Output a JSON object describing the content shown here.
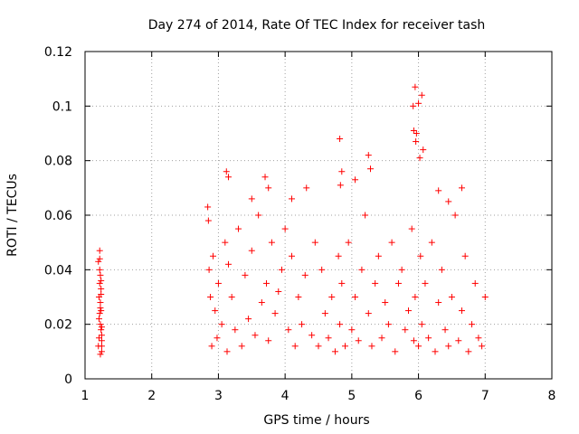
{
  "chart_data": {
    "type": "scatter",
    "title": "Day 274 of 2014, Rate Of TEC Index for receiver tash",
    "xlabel": "GPS time / hours",
    "ylabel": "ROTI / TECUs",
    "xlim": [
      1,
      8
    ],
    "ylim": [
      0,
      0.12
    ],
    "xticks": [
      "1",
      "2",
      "3",
      "4",
      "5",
      "6",
      "7",
      "8"
    ],
    "yticks": [
      "0",
      "0.02",
      "0.04",
      "0.06",
      "0.08",
      "0.1",
      "0.12"
    ],
    "grid": true,
    "marker": "+",
    "color": "#ff0000",
    "series": [
      {
        "name": "ROTI",
        "x": [
          1.2,
          1.21,
          1.22,
          1.22,
          1.23,
          1.23,
          1.24,
          1.24,
          1.25,
          1.25,
          1.21,
          1.22,
          1.23,
          1.24,
          1.25,
          1.2,
          1.22,
          1.23,
          1.24,
          1.25,
          1.23,
          1.24,
          1.22,
          1.25,
          1.21,
          2.84,
          2.85,
          2.86,
          2.88,
          2.9,
          2.92,
          2.95,
          2.98,
          3.0,
          3.05,
          3.1,
          3.13,
          3.15,
          3.2,
          3.25,
          3.3,
          3.35,
          3.4,
          3.45,
          3.5,
          3.55,
          3.6,
          3.65,
          3.72,
          3.75,
          3.8,
          3.85,
          3.9,
          3.95,
          4.0,
          4.05,
          4.1,
          4.15,
          4.2,
          4.25,
          4.3,
          4.4,
          4.45,
          4.5,
          4.55,
          4.6,
          4.65,
          4.7,
          4.75,
          4.8,
          4.82,
          4.85,
          4.9,
          4.95,
          5.0,
          5.05,
          5.1,
          5.15,
          5.2,
          5.25,
          5.3,
          5.35,
          5.4,
          5.45,
          5.5,
          5.55,
          5.6,
          5.65,
          5.7,
          5.75,
          5.8,
          5.85,
          5.9,
          5.93,
          5.95,
          6.0,
          6.03,
          6.05,
          6.1,
          6.15,
          6.2,
          6.25,
          6.3,
          6.35,
          6.4,
          6.45,
          6.5,
          6.55,
          6.6,
          6.65,
          6.7,
          6.75,
          6.8,
          6.85,
          6.9,
          6.95,
          7.0,
          3.12,
          3.15,
          3.7,
          3.75,
          4.82,
          4.85,
          4.83,
          5.25,
          5.28,
          5.05,
          5.92,
          5.95,
          5.97,
          6.0,
          5.93,
          5.96,
          6.02,
          6.05,
          6.07,
          6.65,
          4.32,
          4.1,
          3.5,
          6.3,
          6.45
        ],
        "y": [
          0.012,
          0.03,
          0.044,
          0.047,
          0.038,
          0.02,
          0.025,
          0.033,
          0.016,
          0.01,
          0.022,
          0.035,
          0.028,
          0.018,
          0.014,
          0.043,
          0.04,
          0.026,
          0.031,
          0.012,
          0.009,
          0.036,
          0.024,
          0.019,
          0.015,
          0.063,
          0.058,
          0.04,
          0.03,
          0.012,
          0.045,
          0.025,
          0.015,
          0.035,
          0.02,
          0.05,
          0.01,
          0.042,
          0.03,
          0.018,
          0.055,
          0.012,
          0.038,
          0.022,
          0.047,
          0.016,
          0.06,
          0.028,
          0.035,
          0.014,
          0.05,
          0.024,
          0.032,
          0.04,
          0.055,
          0.018,
          0.045,
          0.012,
          0.03,
          0.02,
          0.038,
          0.016,
          0.05,
          0.012,
          0.04,
          0.024,
          0.015,
          0.03,
          0.01,
          0.045,
          0.02,
          0.035,
          0.012,
          0.05,
          0.018,
          0.03,
          0.014,
          0.04,
          0.06,
          0.024,
          0.012,
          0.035,
          0.045,
          0.015,
          0.028,
          0.02,
          0.05,
          0.01,
          0.035,
          0.04,
          0.018,
          0.025,
          0.055,
          0.014,
          0.03,
          0.012,
          0.045,
          0.02,
          0.035,
          0.015,
          0.05,
          0.01,
          0.028,
          0.04,
          0.018,
          0.012,
          0.03,
          0.06,
          0.014,
          0.025,
          0.045,
          0.01,
          0.02,
          0.035,
          0.015,
          0.012,
          0.03,
          0.076,
          0.074,
          0.074,
          0.07,
          0.088,
          0.076,
          0.071,
          0.082,
          0.077,
          0.073,
          0.1,
          0.107,
          0.09,
          0.101,
          0.091,
          0.087,
          0.081,
          0.104,
          0.084,
          0.07,
          0.07,
          0.066,
          0.066,
          0.069,
          0.065
        ]
      }
    ]
  }
}
